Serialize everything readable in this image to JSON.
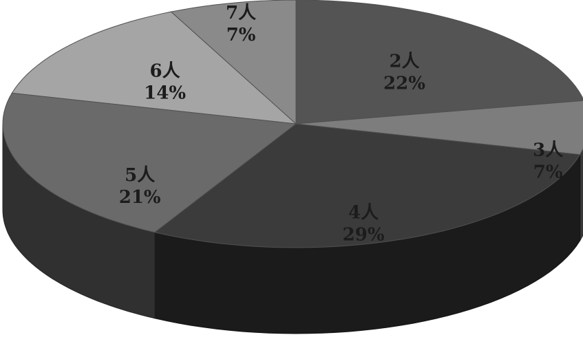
{
  "chart_data": {
    "type": "pie",
    "style": "3d",
    "start_angle": "12 o'clock",
    "direction": "clockwise",
    "slices": [
      {
        "category": "2人",
        "value": 22,
        "value_label": "22%",
        "color": "#545454"
      },
      {
        "category": "3人",
        "value": 7,
        "value_label": "7%",
        "color": "#7d7d7d"
      },
      {
        "category": "4人",
        "value": 29,
        "value_label": "29%",
        "color": "#3b3b3b"
      },
      {
        "category": "5人",
        "value": 21,
        "value_label": "21%",
        "color": "#6a6a6a"
      },
      {
        "category": "6人",
        "value": 14,
        "value_label": "14%",
        "color": "#a5a5a5"
      },
      {
        "category": "7人",
        "value": 7,
        "value_label": "7%",
        "color": "#8a8a8a"
      }
    ]
  }
}
